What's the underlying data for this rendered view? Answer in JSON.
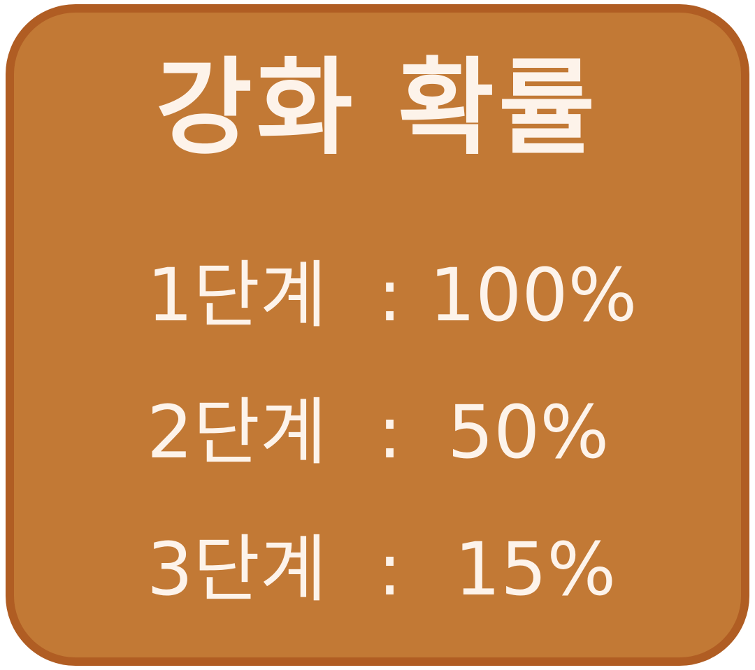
{
  "title": "강화 확률",
  "rows": [
    {
      "stage": "1단계",
      "separator": ":",
      "value": "100%"
    },
    {
      "stage": "2단계",
      "separator": ":",
      "value": "50%"
    },
    {
      "stage": "3단계",
      "separator": ":",
      "value": "15%"
    }
  ],
  "colors": {
    "panel_fill": "#c27935",
    "panel_border": "#b05d23",
    "text": "#fdf3ea"
  }
}
